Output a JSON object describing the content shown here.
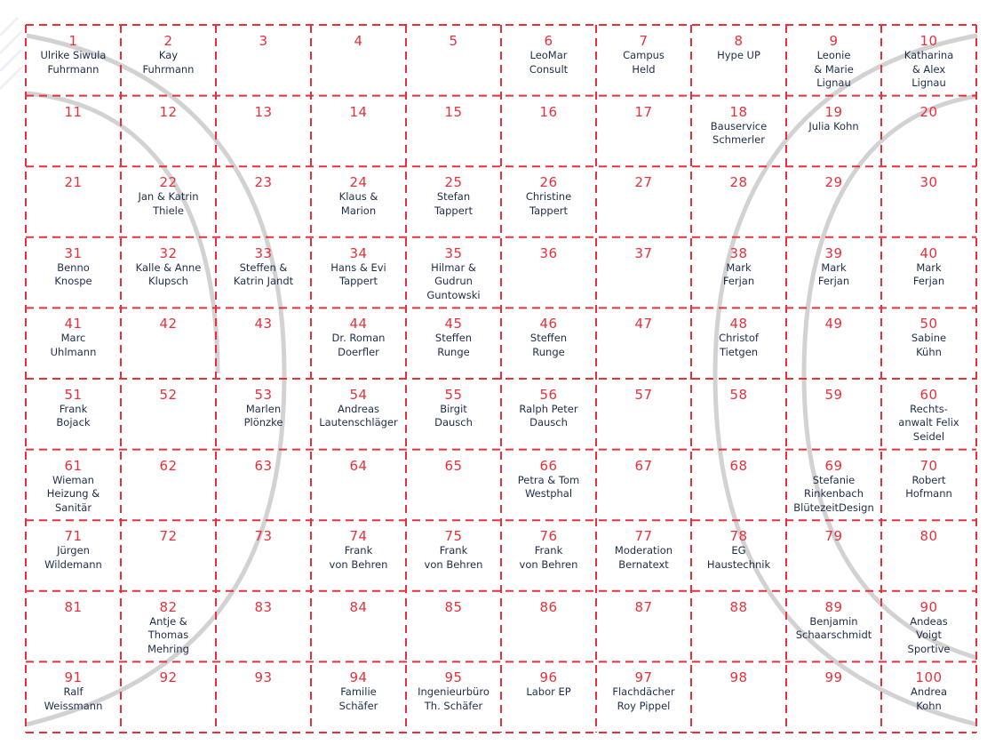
{
  "grid": {
    "colors": {
      "number": "#e8303c",
      "name": "#1e2d4a",
      "lines": "#e8303c",
      "arcs": "#cfcfcf"
    },
    "cells": [
      {
        "number": "1",
        "name": "Ulrike Siwula\nFuhrmann"
      },
      {
        "number": "2",
        "name": "Kay\nFuhrmann"
      },
      {
        "number": "3",
        "name": ""
      },
      {
        "number": "4",
        "name": ""
      },
      {
        "number": "5",
        "name": ""
      },
      {
        "number": "6",
        "name": "LeoMar\nConsult"
      },
      {
        "number": "7",
        "name": "Campus\nHeld"
      },
      {
        "number": "8",
        "name": "Hype UP"
      },
      {
        "number": "9",
        "name": "Leonie\n& Marie\nLignau"
      },
      {
        "number": "10",
        "name": "Katharina\n& Alex\nLignau"
      },
      {
        "number": "11",
        "name": ""
      },
      {
        "number": "12",
        "name": ""
      },
      {
        "number": "13",
        "name": ""
      },
      {
        "number": "14",
        "name": ""
      },
      {
        "number": "15",
        "name": ""
      },
      {
        "number": "16",
        "name": ""
      },
      {
        "number": "17",
        "name": ""
      },
      {
        "number": "18",
        "name": "Bauservice\nSchmerler"
      },
      {
        "number": "19",
        "name": "Julia Kohn"
      },
      {
        "number": "20",
        "name": ""
      },
      {
        "number": "21",
        "name": ""
      },
      {
        "number": "22",
        "name": "Jan & Katrin\nThiele"
      },
      {
        "number": "23",
        "name": ""
      },
      {
        "number": "24",
        "name": "Klaus &\nMarion"
      },
      {
        "number": "25",
        "name": "Stefan\nTappert"
      },
      {
        "number": "26",
        "name": "Christine\nTappert"
      },
      {
        "number": "27",
        "name": ""
      },
      {
        "number": "28",
        "name": ""
      },
      {
        "number": "29",
        "name": ""
      },
      {
        "number": "30",
        "name": ""
      },
      {
        "number": "31",
        "name": "Benno\nKnospe"
      },
      {
        "number": "32",
        "name": "Kalle & Anne\nKlupsch"
      },
      {
        "number": "33",
        "name": "Steffen &\nKatrin Jandt"
      },
      {
        "number": "34",
        "name": "Hans & Evi\nTappert"
      },
      {
        "number": "35",
        "name": "Hilmar &\nGudrun\nGuntowski"
      },
      {
        "number": "36",
        "name": ""
      },
      {
        "number": "37",
        "name": ""
      },
      {
        "number": "38",
        "name": "Mark\nFerjan"
      },
      {
        "number": "39",
        "name": "Mark\nFerjan"
      },
      {
        "number": "40",
        "name": "Mark\nFerjan"
      },
      {
        "number": "41",
        "name": "Marc\nUhlmann"
      },
      {
        "number": "42",
        "name": ""
      },
      {
        "number": "43",
        "name": ""
      },
      {
        "number": "44",
        "name": "Dr. Roman\nDoerfler"
      },
      {
        "number": "45",
        "name": "Steffen\nRunge"
      },
      {
        "number": "46",
        "name": "Steffen\nRunge"
      },
      {
        "number": "47",
        "name": ""
      },
      {
        "number": "48",
        "name": "Christof\nTietgen"
      },
      {
        "number": "49",
        "name": ""
      },
      {
        "number": "50",
        "name": "Sabine\nKühn"
      },
      {
        "number": "51",
        "name": "Frank\nBojack"
      },
      {
        "number": "52",
        "name": ""
      },
      {
        "number": "53",
        "name": "Marlen\nPlönzke"
      },
      {
        "number": "54",
        "name": "Andreas\nLautenschläger"
      },
      {
        "number": "55",
        "name": "Birgit\nDausch"
      },
      {
        "number": "56",
        "name": "Ralph Peter\nDausch"
      },
      {
        "number": "57",
        "name": ""
      },
      {
        "number": "58",
        "name": ""
      },
      {
        "number": "59",
        "name": ""
      },
      {
        "number": "60",
        "name": "Rechts-\nanwalt Felix\nSeidel"
      },
      {
        "number": "61",
        "name": "Wieman\nHeizung &\nSanitär"
      },
      {
        "number": "62",
        "name": ""
      },
      {
        "number": "63",
        "name": ""
      },
      {
        "number": "64",
        "name": ""
      },
      {
        "number": "65",
        "name": ""
      },
      {
        "number": "66",
        "name": "Petra & Tom\nWestphal"
      },
      {
        "number": "67",
        "name": ""
      },
      {
        "number": "68",
        "name": ""
      },
      {
        "number": "69",
        "name": "Stefanie\nRinkenbach\nBlütezeitDesign"
      },
      {
        "number": "70",
        "name": "Robert\nHofmann"
      },
      {
        "number": "71",
        "name": "Jürgen\nWildemann"
      },
      {
        "number": "72",
        "name": ""
      },
      {
        "number": "73",
        "name": ""
      },
      {
        "number": "74",
        "name": "Frank\nvon Behren"
      },
      {
        "number": "75",
        "name": "Frank\nvon Behren"
      },
      {
        "number": "76",
        "name": "Frank\nvon Behren"
      },
      {
        "number": "77",
        "name": "Moderation\nBernatext"
      },
      {
        "number": "78",
        "name": "EG\nHaustechnik"
      },
      {
        "number": "79",
        "name": ""
      },
      {
        "number": "80",
        "name": ""
      },
      {
        "number": "81",
        "name": ""
      },
      {
        "number": "82",
        "name": "Antje &\nThomas\nMehring"
      },
      {
        "number": "83",
        "name": ""
      },
      {
        "number": "84",
        "name": ""
      },
      {
        "number": "85",
        "name": ""
      },
      {
        "number": "86",
        "name": ""
      },
      {
        "number": "87",
        "name": ""
      },
      {
        "number": "88",
        "name": ""
      },
      {
        "number": "89",
        "name": "Benjamin\nSchaarschmidt"
      },
      {
        "number": "90",
        "name": "Andeas\nVoigt\nSportive"
      },
      {
        "number": "91",
        "name": "Ralf\nWeissmann"
      },
      {
        "number": "92",
        "name": ""
      },
      {
        "number": "93",
        "name": ""
      },
      {
        "number": "94",
        "name": "Familie\nSchäfer"
      },
      {
        "number": "95",
        "name": "Ingenieurbüro\nTh. Schäfer"
      },
      {
        "number": "96",
        "name": "Labor EP"
      },
      {
        "number": "97",
        "name": "Flachdächer\nRoy Pippel"
      },
      {
        "number": "98",
        "name": ""
      },
      {
        "number": "99",
        "name": ""
      },
      {
        "number": "100",
        "name": "Andrea\nKohn"
      }
    ]
  }
}
